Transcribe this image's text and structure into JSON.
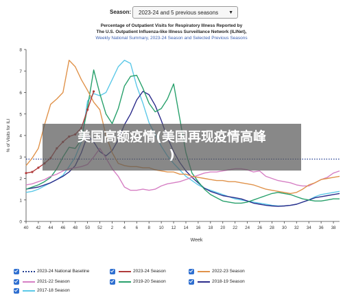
{
  "header": {
    "season_label": "Season:",
    "season_value": "2023-24 and 5 previous seasons",
    "title_line1": "Percentage of Outpatient Visits for Respiratory Illness Reported by",
    "title_line2": "The U.S. Outpatient Influenza-like Illness Surveillance Network (ILINet),",
    "title_line3": "Weekly National Summary, 2023-24 Season and Selected Previous Seasons"
  },
  "overlay": {
    "line1": "美国高额疫情(美国再现疫情高峰",
    "line2": ")"
  },
  "chart_data": {
    "type": "line",
    "xlabel": "Week",
    "ylabel": "% of Visits for ILI",
    "ylim": [
      0,
      8
    ],
    "yticks": [
      0,
      1,
      2,
      3,
      4,
      5,
      6,
      7,
      8
    ],
    "x_tick_labels": [
      "40",
      "42",
      "44",
      "46",
      "48",
      "50",
      "52",
      "2",
      "4",
      "6",
      "8",
      "10",
      "12",
      "14",
      "16",
      "18",
      "20",
      "22",
      "24",
      "26",
      "28",
      "30",
      "32",
      "34",
      "36",
      "38"
    ],
    "grid": false,
    "legend_position": "bottom",
    "baseline": {
      "name": "2023-24 National Baseline",
      "value": 2.9,
      "color": "#1f3b8f"
    },
    "series": [
      {
        "name": "2023-24 Season",
        "color": "#b03a3a",
        "values": [
          2.25,
          2.3,
          2.5,
          2.7,
          2.95,
          3.4,
          3.7,
          3.95,
          4.05,
          4.35,
          5.2,
          6.05
        ]
      },
      {
        "name": "2022-23 Season",
        "color": "#e0924a",
        "values": [
          2.6,
          2.95,
          3.4,
          4.5,
          5.45,
          5.7,
          6.0,
          7.5,
          7.2,
          6.6,
          6.1,
          5.55,
          5.2,
          4.0,
          3.2,
          2.7,
          2.6,
          2.55,
          2.55,
          2.5,
          2.5,
          2.4,
          2.35,
          2.3,
          2.3,
          2.2,
          2.2,
          2.1,
          2.05,
          2.0,
          1.95,
          1.9,
          1.9,
          1.85,
          1.85,
          1.8,
          1.75,
          1.7,
          1.6,
          1.5,
          1.45,
          1.4,
          1.35,
          1.3,
          1.35,
          1.5,
          1.7,
          1.8,
          1.95,
          2.0,
          2.05,
          2.1
        ]
      },
      {
        "name": "2021-22 Season",
        "color": "#d67fc4",
        "values": [
          1.7,
          1.75,
          1.85,
          1.95,
          2.1,
          2.2,
          2.35,
          2.45,
          2.5,
          2.55,
          2.65,
          3.0,
          3.4,
          2.95,
          2.45,
          2.1,
          1.6,
          1.45,
          1.45,
          1.5,
          1.45,
          1.5,
          1.65,
          1.75,
          1.8,
          1.85,
          1.95,
          2.05,
          2.15,
          2.25,
          2.3,
          2.3,
          2.35,
          2.4,
          2.45,
          2.45,
          2.4,
          2.3,
          2.35,
          2.1,
          2.0,
          1.9,
          1.85,
          1.8,
          1.7,
          1.65,
          1.65,
          1.8,
          1.95,
          2.05,
          2.25,
          2.35
        ]
      },
      {
        "name": "2019-20 Season",
        "color": "#27a06b",
        "values": [
          1.5,
          1.6,
          1.7,
          1.85,
          2.05,
          2.45,
          3.0,
          3.45,
          3.4,
          3.8,
          5.3,
          7.05,
          5.95,
          5.0,
          4.55,
          5.25,
          6.3,
          6.75,
          6.8,
          6.2,
          5.5,
          5.1,
          5.25,
          5.7,
          6.4,
          4.8,
          3.2,
          2.25,
          1.85,
          1.5,
          1.25,
          1.1,
          0.95,
          0.9,
          0.85,
          0.85,
          0.9,
          1.0,
          1.1,
          1.2,
          1.3,
          1.35,
          1.3,
          1.25,
          1.15,
          1.05,
          1.0,
          0.95,
          0.95,
          1.0,
          1.05,
          1.05
        ]
      },
      {
        "name": "2018-19 Season",
        "color": "#2b2b8a",
        "values": [
          1.5,
          1.55,
          1.6,
          1.7,
          1.8,
          1.95,
          2.1,
          2.3,
          2.6,
          3.2,
          4.0,
          3.7,
          3.25,
          3.05,
          3.3,
          3.8,
          4.5,
          5.0,
          5.65,
          6.05,
          5.9,
          5.4,
          4.7,
          3.9,
          3.25,
          2.75,
          2.35,
          2.05,
          1.8,
          1.55,
          1.4,
          1.3,
          1.2,
          1.15,
          1.1,
          1.05,
          0.95,
          0.85,
          0.8,
          0.75,
          0.72,
          0.7,
          0.72,
          0.75,
          0.8,
          0.9,
          1.0,
          1.1,
          1.15,
          1.2,
          1.25,
          1.3
        ]
      },
      {
        "name": "2017-18 Season",
        "color": "#5bc8e8",
        "values": [
          1.35,
          1.4,
          1.5,
          1.65,
          1.8,
          1.95,
          2.15,
          2.55,
          3.0,
          3.7,
          5.6,
          5.95,
          5.85,
          6.0,
          6.6,
          7.2,
          7.5,
          7.35,
          6.3,
          5.5,
          4.6,
          4.05,
          3.5,
          3.05,
          2.7,
          2.4,
          2.1,
          1.9,
          1.7,
          1.55,
          1.45,
          1.35,
          1.25,
          1.15,
          1.05,
          1.0,
          0.95,
          0.9,
          0.85,
          0.8,
          0.75,
          0.72,
          0.72,
          0.75,
          0.8,
          0.9,
          1.0,
          1.15,
          1.25,
          1.3,
          1.35,
          1.4
        ]
      }
    ]
  }
}
